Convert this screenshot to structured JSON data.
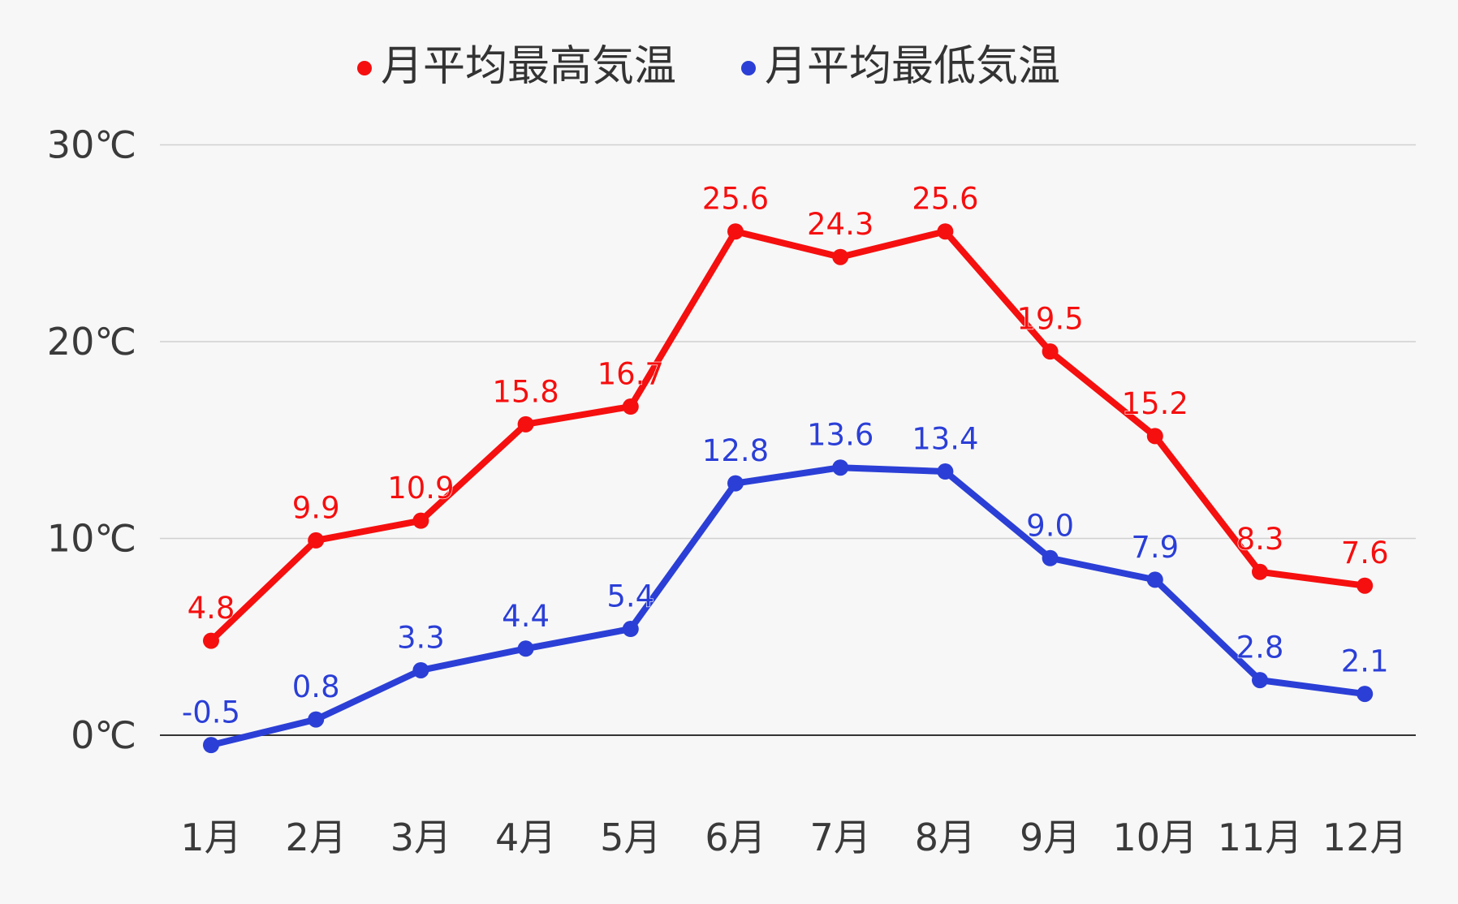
{
  "chart_data": {
    "type": "line",
    "categories": [
      "1月",
      "2月",
      "3月",
      "4月",
      "5月",
      "6月",
      "7月",
      "8月",
      "9月",
      "10月",
      "11月",
      "12月"
    ],
    "series": [
      {
        "name": "月平均最高気温",
        "color": "#f50f0f",
        "values": [
          4.8,
          9.9,
          10.9,
          15.8,
          16.7,
          25.6,
          24.3,
          25.6,
          19.5,
          15.2,
          8.3,
          7.6
        ],
        "labels": [
          "4.8",
          "9.9",
          "10.9",
          "15.8",
          "16.7",
          "25.6",
          "24.3",
          "25.6",
          "19.5",
          "15.2",
          "8.3",
          "7.6"
        ]
      },
      {
        "name": "月平均最低気温",
        "color": "#2b3fd6",
        "values": [
          -0.5,
          0.8,
          3.3,
          4.4,
          5.4,
          12.8,
          13.6,
          13.4,
          9.0,
          7.9,
          2.8,
          2.1
        ],
        "labels": [
          "-0.5",
          "0.8",
          "3.3",
          "4.4",
          "5.4",
          "12.8",
          "13.6",
          "13.4",
          "9.0",
          "7.9",
          "2.8",
          "2.1"
        ]
      }
    ],
    "y_ticks": [
      0,
      10,
      20,
      30
    ],
    "y_tick_labels": [
      "0℃",
      "10℃",
      "20℃",
      "30℃"
    ],
    "ylim": [
      0,
      30
    ],
    "grid": true,
    "legend": "top-center",
    "title": "",
    "xlabel": "",
    "ylabel": ""
  }
}
